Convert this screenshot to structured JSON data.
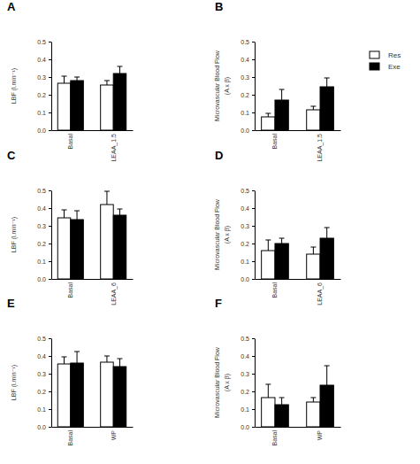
{
  "chart_data": [
    {
      "type": "bar",
      "title": "A",
      "y_label": [
        "LBF (l.min⁻¹)"
      ],
      "categories": [
        "Basal",
        "LEAA_1.5"
      ],
      "series": [
        {
          "name": "Res",
          "color": "#ffffff",
          "values": [
            0.265,
            0.255
          ],
          "errors": [
            0.04,
            0.025
          ]
        },
        {
          "name": "Exe",
          "color": "#000000",
          "values": [
            0.28,
            0.32
          ],
          "errors": [
            0.02,
            0.04
          ]
        }
      ],
      "ylim": [
        0,
        0.5
      ],
      "yticks": [
        {
          "value": 0,
          "label": "0.0"
        },
        0.1,
        0.2,
        0.3,
        0.4,
        0.5
      ],
      "grid": false,
      "legend": "right"
    },
    {
      "type": "bar",
      "title": "B",
      "y_label": [
        "Microvascular Blood Flow",
        "(A x β)"
      ],
      "categories": [
        "Basal",
        "LEAA_1.5"
      ],
      "series": [
        {
          "color": "#ffffff",
          "values": [
            0.075,
            0.115
          ],
          "errors": [
            0.02,
            0.02
          ]
        },
        {
          "color": "#000000",
          "values": [
            0.17,
            0.245
          ],
          "errors": [
            0.06,
            0.05
          ]
        }
      ],
      "ylim": [
        0,
        0.5
      ],
      "yticks": [
        {
          "value": 0,
          "label": "0.0"
        },
        0.1,
        0.2,
        0.3,
        0.4,
        0.5
      ],
      "grid": false
    },
    {
      "type": "bar",
      "title": "C",
      "y_label": [
        "LBF (l.min⁻¹)"
      ],
      "categories": [
        "Basal",
        "LEAA_6"
      ],
      "series": [
        {
          "color": "#ffffff",
          "values": [
            0.345,
            0.42
          ],
          "errors": [
            0.045,
            0.075
          ]
        },
        {
          "color": "#000000",
          "values": [
            0.335,
            0.36
          ],
          "errors": [
            0.05,
            0.035
          ]
        }
      ],
      "ylim": [
        0,
        0.5
      ],
      "yticks": [
        {
          "value": 0,
          "label": "0.0"
        },
        0.1,
        0.2,
        0.3,
        0.4,
        0.5
      ],
      "grid": false
    },
    {
      "type": "bar",
      "title": "D",
      "y_label": [
        "Microvascular Blood Flow",
        "(A x β)"
      ],
      "categories": [
        "Basal",
        "LEAA_6"
      ],
      "series": [
        {
          "color": "#ffffff",
          "values": [
            0.16,
            0.14
          ],
          "errors": [
            0.06,
            0.04
          ]
        },
        {
          "color": "#000000",
          "values": [
            0.2,
            0.23
          ],
          "errors": [
            0.03,
            0.06
          ]
        }
      ],
      "ylim": [
        0,
        0.5
      ],
      "yticks": [
        {
          "value": 0,
          "label": "0.0"
        },
        0.1,
        0.2,
        0.3,
        0.4,
        0.5
      ],
      "grid": false
    },
    {
      "type": "bar",
      "title": "E",
      "y_label": [
        "LBF (l.min⁻¹)"
      ],
      "categories": [
        "Basal",
        "WP"
      ],
      "series": [
        {
          "color": "#ffffff",
          "values": [
            0.355,
            0.365
          ],
          "errors": [
            0.04,
            0.035
          ]
        },
        {
          "color": "#000000",
          "values": [
            0.36,
            0.34
          ],
          "errors": [
            0.065,
            0.045
          ]
        }
      ],
      "ylim": [
        0,
        0.5
      ],
      "yticks": [
        {
          "value": 0,
          "label": "0.0"
        },
        0.1,
        0.2,
        0.3,
        0.4,
        0.5
      ],
      "grid": false
    },
    {
      "type": "bar",
      "title": "F",
      "y_label": [
        "Microvascular Blood Flow",
        "(A x β)"
      ],
      "categories": [
        "Basal",
        "WP"
      ],
      "series": [
        {
          "color": "#ffffff",
          "values": [
            0.165,
            0.14
          ],
          "errors": [
            0.075,
            0.025
          ]
        },
        {
          "color": "#000000",
          "values": [
            0.125,
            0.235
          ],
          "errors": [
            0.04,
            0.11
          ]
        }
      ],
      "ylim": [
        0,
        0.5
      ],
      "yticks": [
        {
          "value": 0,
          "label": "0.0"
        },
        0.1,
        0.2,
        0.3,
        0.4,
        0.5
      ],
      "grid": false
    }
  ]
}
